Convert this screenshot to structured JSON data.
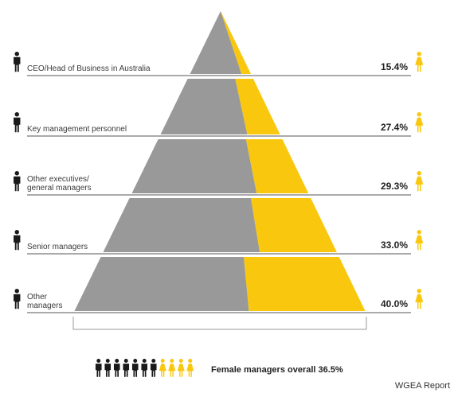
{
  "chart_data": {
    "type": "bar",
    "title": "",
    "categories": [
      [
        "CEO/Head of Business in Australia"
      ],
      [
        "Key management personnel"
      ],
      [
        "Other executives/",
        "general managers"
      ],
      [
        "Senior managers"
      ],
      [
        "Other",
        "managers"
      ]
    ],
    "values": [
      15.4,
      27.4,
      29.3,
      33.0,
      40.0
    ],
    "value_labels": [
      "15.4%",
      "27.4%",
      "29.3%",
      "33.0%",
      "40.0%"
    ],
    "unit": "% female",
    "summary": {
      "text": "Female managers overall 36.5%",
      "value": 36.5,
      "male_icons": 7,
      "female_icons": 4
    },
    "source": "WGEA Report"
  },
  "colors": {
    "male": "#999999",
    "female": "#f9c80e",
    "icon_male": "#1a1a1a",
    "icon_female": "#f9c80e",
    "line": "#555555",
    "bracket": "#999999"
  },
  "icons": {
    "male": "man-icon",
    "female": "woman-icon"
  }
}
